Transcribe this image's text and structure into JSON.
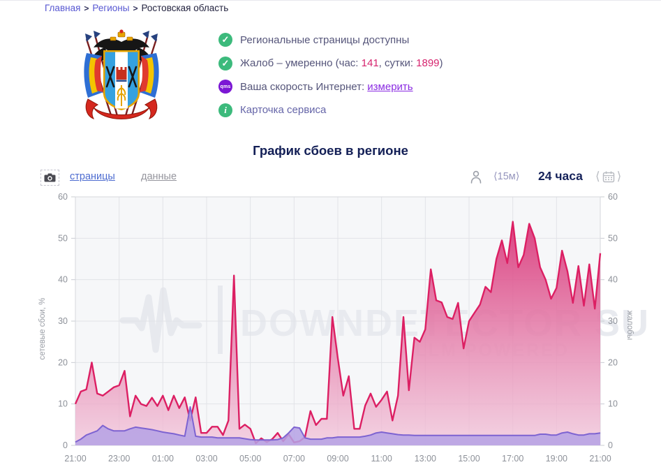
{
  "breadcrumb": {
    "sep": ">",
    "items": [
      {
        "label": "Главная"
      },
      {
        "label": "Регионы"
      },
      {
        "label": "Ростовская область"
      }
    ]
  },
  "status": {
    "row1": "Региональные страницы доступны",
    "row2_prefix": "Жалоб – умеренно (час: ",
    "row2_hour": "141",
    "row2_mid": ", сутки: ",
    "row2_day": "1899",
    "row2_suffix": ")",
    "row3_label": "Ваша скорость Интернет: ",
    "row3_link": "измерить",
    "row4": "Карточка сервиса",
    "check_glyph": "✓",
    "info_glyph": "i",
    "qms_glyph": "qms"
  },
  "chart_header": {
    "title": "График сбоев в регионе"
  },
  "toolbar": {
    "pages_link": "страницы",
    "data_link": "данные",
    "interval": "⟨15м⟩",
    "period": "24 часа",
    "prev": "⟨",
    "next": "⟩"
  },
  "chart_data": {
    "type": "area",
    "title": "График сбоев в регионе",
    "x_ticks": [
      "21:00",
      "23:00",
      "01:00",
      "03:00",
      "05:00",
      "07:00",
      "09:00",
      "11:00",
      "13:00",
      "15:00",
      "17:00",
      "19:00",
      "21:00"
    ],
    "points_per_hour": 4,
    "hours": 24,
    "ylim": [
      0,
      60
    ],
    "y_ticks": [
      0,
      10,
      20,
      30,
      40,
      50,
      60
    ],
    "ylabel_left": "сетевые сбои, %",
    "ylabel_right": "жалобы",
    "grid": true,
    "watermark": "DOWNDETECTOR SU",
    "watermark_sub": "LLM POWERED",
    "series": [
      {
        "name": "сетевые сбои, %",
        "line_color": "#dc1f63",
        "fill_top": "#d5206a",
        "fill_bottom": "#f2c6db",
        "values": [
          10,
          13,
          13.5,
          20,
          12.5,
          12,
          13,
          14,
          14.5,
          18,
          7,
          12,
          10,
          9.5,
          11.5,
          9.5,
          12,
          8.5,
          12,
          9,
          11.6,
          6,
          11.6,
          3,
          3,
          4.5,
          4.5,
          2.5,
          6,
          41,
          4,
          5,
          4,
          0.5,
          1.7,
          0.8,
          1.5,
          3,
          1,
          2.7,
          0.7,
          1,
          2,
          8.3,
          4.9,
          6.4,
          6.4,
          31,
          21,
          12,
          16.7,
          4,
          4,
          9.6,
          12.5,
          9.3,
          11,
          13,
          6,
          12,
          31,
          13.3,
          26,
          25,
          28,
          42.5,
          35,
          34.5,
          31,
          30.5,
          34.4,
          23.4,
          30,
          32,
          34,
          38.3,
          37,
          45,
          49.5,
          44,
          54,
          43,
          46,
          53.5,
          50,
          43,
          40,
          35.4,
          38,
          47,
          42,
          34.4,
          43.3,
          33.7,
          43.7,
          33,
          46.4
        ]
      },
      {
        "name": "жалобы",
        "line_color": "#7d63d1",
        "fill_top": "#b5a1e5",
        "fill_bottom": "#b5a1e5",
        "values": [
          0.8,
          1.5,
          2.5,
          3,
          3.5,
          4.8,
          4,
          3.5,
          3.5,
          3.5,
          4,
          4.4,
          4.2,
          4,
          3.8,
          3.5,
          3.2,
          3,
          2.8,
          2.5,
          2.2,
          9.3,
          2.2,
          2,
          2,
          2,
          1.8,
          1.8,
          1.8,
          1.8,
          1.8,
          1.6,
          1.4,
          1.3,
          1.3,
          1.3,
          1.3,
          1.4,
          1.8,
          3,
          4.4,
          4.2,
          1.8,
          1.5,
          1.5,
          1.5,
          1.8,
          1.8,
          2,
          2,
          2,
          2,
          2,
          2.2,
          2.5,
          3,
          3.2,
          3,
          2.8,
          2.6,
          2.5,
          2.5,
          2.4,
          2.4,
          2.4,
          2.4,
          2.4,
          2.4,
          2.4,
          2.4,
          2.4,
          2.4,
          2.4,
          2.4,
          2.4,
          2.4,
          2.4,
          2.4,
          2.4,
          2.4,
          2.4,
          2.4,
          2.4,
          2.4,
          2.4,
          2.7,
          2.7,
          2.5,
          2.5,
          3,
          3.2,
          2.8,
          2.5,
          2.5,
          2.8,
          2.8,
          3
        ]
      }
    ]
  }
}
